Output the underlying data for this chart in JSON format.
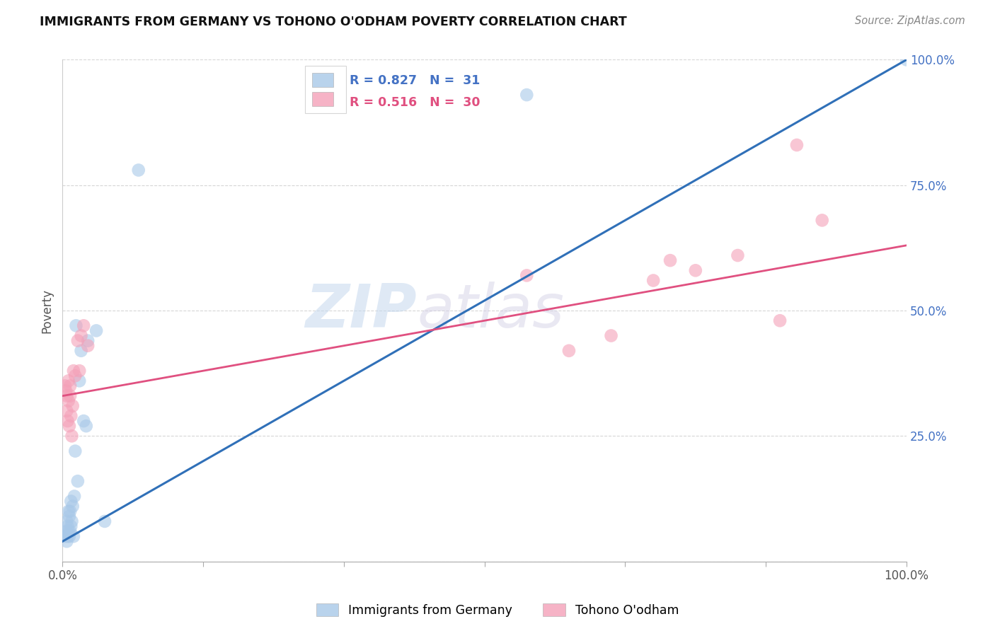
{
  "title": "IMMIGRANTS FROM GERMANY VS TOHONO O'ODHAM POVERTY CORRELATION CHART",
  "source": "Source: ZipAtlas.com",
  "ylabel": "Poverty",
  "xlim": [
    0,
    1.0
  ],
  "ylim": [
    0,
    1.0
  ],
  "blue_R": 0.827,
  "blue_N": 31,
  "pink_R": 0.516,
  "pink_N": 30,
  "blue_color": "#a8c8e8",
  "pink_color": "#f4a0b8",
  "blue_line_color": "#3070b8",
  "pink_line_color": "#e05080",
  "legend_blue_label": "Immigrants from Germany",
  "legend_pink_label": "Tohono O'odham",
  "watermark_zip": "ZIP",
  "watermark_atlas": "atlas",
  "right_tick_color": "#4472c4",
  "blue_x": [
    0.003,
    0.004,
    0.005,
    0.005,
    0.006,
    0.006,
    0.007,
    0.007,
    0.008,
    0.008,
    0.009,
    0.009,
    0.01,
    0.01,
    0.011,
    0.012,
    0.013,
    0.014,
    0.015,
    0.016,
    0.018,
    0.02,
    0.022,
    0.025,
    0.028,
    0.03,
    0.04,
    0.05,
    0.09,
    0.55,
    1.0
  ],
  "blue_y": [
    0.05,
    0.06,
    0.04,
    0.08,
    0.05,
    0.07,
    0.06,
    0.1,
    0.05,
    0.09,
    0.06,
    0.1,
    0.07,
    0.12,
    0.08,
    0.11,
    0.05,
    0.13,
    0.22,
    0.47,
    0.16,
    0.36,
    0.42,
    0.28,
    0.27,
    0.44,
    0.46,
    0.08,
    0.78,
    0.93,
    1.0
  ],
  "pink_x": [
    0.003,
    0.004,
    0.005,
    0.005,
    0.006,
    0.007,
    0.007,
    0.008,
    0.009,
    0.009,
    0.01,
    0.011,
    0.012,
    0.013,
    0.015,
    0.018,
    0.02,
    0.022,
    0.025,
    0.03,
    0.55,
    0.6,
    0.65,
    0.7,
    0.72,
    0.75,
    0.8,
    0.85,
    0.87,
    0.9
  ],
  "pink_y": [
    0.35,
    0.34,
    0.3,
    0.33,
    0.28,
    0.32,
    0.36,
    0.27,
    0.33,
    0.35,
    0.29,
    0.25,
    0.31,
    0.38,
    0.37,
    0.44,
    0.38,
    0.45,
    0.47,
    0.43,
    0.57,
    0.42,
    0.45,
    0.56,
    0.6,
    0.58,
    0.61,
    0.48,
    0.83,
    0.68
  ],
  "blue_line_x0": 0.0,
  "blue_line_y0": 0.04,
  "blue_line_x1": 1.0,
  "blue_line_y1": 1.0,
  "pink_line_x0": 0.0,
  "pink_line_y0": 0.33,
  "pink_line_x1": 1.0,
  "pink_line_y1": 0.63,
  "xtick_positions": [
    0.0,
    0.1667,
    0.3333,
    0.5,
    0.6667,
    0.8333,
    1.0
  ],
  "ytick_positions": [
    0.0,
    0.25,
    0.5,
    0.75,
    1.0
  ],
  "bubble_size": 180
}
